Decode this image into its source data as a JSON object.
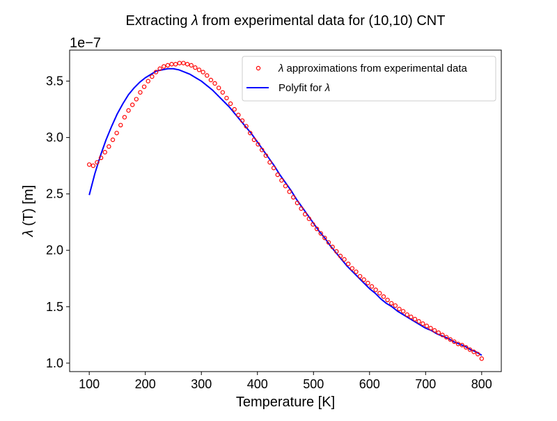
{
  "chart_data": {
    "type": "scatter",
    "title_prefix": "Extracting ",
    "title_symbol": "λ",
    "title_suffix": " from experimental data for (10,10) CNT",
    "xlabel": "Temperature [K]",
    "ylabel_symbol": "λ",
    "ylabel_suffix": " (T) [m]",
    "y_offset_label": "1e−7",
    "xlim": [
      65,
      835
    ],
    "ylim": [
      0.925,
      3.775
    ],
    "x_ticks": [
      100,
      200,
      300,
      400,
      500,
      600,
      700,
      800
    ],
    "x_tick_labels": [
      "100",
      "200",
      "300",
      "400",
      "500",
      "600",
      "700",
      "800"
    ],
    "y_ticks": [
      1.0,
      1.5,
      2.0,
      2.5,
      3.0,
      3.5
    ],
    "y_tick_labels": [
      "1.0",
      "1.5",
      "2.0",
      "2.5",
      "3.0",
      "3.5"
    ],
    "grid": false,
    "legend_position": "top-right",
    "series": [
      {
        "name_symbol": "λ",
        "name_suffix": " approximations from experimental data",
        "kind": "scatter",
        "marker": "open-circle",
        "color": "#ff0000",
        "x": [
          100,
          107,
          114,
          121,
          128,
          135,
          142,
          149,
          156,
          163,
          170,
          177,
          184,
          191,
          198,
          205,
          212,
          219,
          226,
          233,
          240,
          247,
          254,
          261,
          268,
          275,
          282,
          289,
          296,
          303,
          310,
          317,
          324,
          331,
          338,
          345,
          352,
          359,
          366,
          373,
          380,
          387,
          394,
          401,
          408,
          415,
          422,
          429,
          436,
          443,
          450,
          457,
          464,
          471,
          478,
          485,
          492,
          499,
          506,
          513,
          520,
          527,
          534,
          541,
          548,
          555,
          562,
          569,
          576,
          583,
          590,
          597,
          604,
          611,
          618,
          625,
          632,
          639,
          646,
          653,
          660,
          667,
          674,
          681,
          688,
          695,
          702,
          709,
          716,
          723,
          730,
          737,
          744,
          751,
          758,
          765,
          772,
          779,
          786,
          793,
          800
        ],
        "y": [
          2.76,
          2.75,
          2.78,
          2.82,
          2.87,
          2.92,
          2.98,
          3.04,
          3.11,
          3.18,
          3.24,
          3.29,
          3.34,
          3.4,
          3.45,
          3.5,
          3.54,
          3.58,
          3.61,
          3.63,
          3.64,
          3.65,
          3.65,
          3.66,
          3.66,
          3.65,
          3.64,
          3.62,
          3.6,
          3.58,
          3.55,
          3.51,
          3.48,
          3.44,
          3.4,
          3.35,
          3.3,
          3.25,
          3.2,
          3.15,
          3.1,
          3.04,
          2.98,
          2.94,
          2.89,
          2.84,
          2.78,
          2.73,
          2.67,
          2.62,
          2.57,
          2.52,
          2.47,
          2.42,
          2.37,
          2.32,
          2.28,
          2.23,
          2.19,
          2.15,
          2.11,
          2.07,
          2.03,
          1.99,
          1.95,
          1.92,
          1.88,
          1.84,
          1.81,
          1.77,
          1.74,
          1.71,
          1.68,
          1.65,
          1.62,
          1.59,
          1.56,
          1.53,
          1.51,
          1.48,
          1.46,
          1.43,
          1.41,
          1.39,
          1.37,
          1.35,
          1.33,
          1.31,
          1.29,
          1.27,
          1.25,
          1.23,
          1.21,
          1.19,
          1.17,
          1.16,
          1.14,
          1.12,
          1.1,
          1.08,
          1.04
        ]
      },
      {
        "name_prefix": "Polyfit for ",
        "name_symbol": "λ",
        "kind": "line",
        "color": "#0000ff",
        "x": [
          100,
          110,
          120,
          130,
          140,
          150,
          160,
          170,
          180,
          190,
          200,
          210,
          220,
          230,
          240,
          250,
          260,
          270,
          280,
          290,
          300,
          310,
          320,
          330,
          340,
          350,
          360,
          370,
          380,
          390,
          400,
          410,
          420,
          430,
          440,
          450,
          460,
          470,
          480,
          490,
          500,
          510,
          520,
          530,
          540,
          550,
          560,
          570,
          580,
          590,
          600,
          610,
          620,
          630,
          640,
          650,
          660,
          670,
          680,
          690,
          700,
          710,
          720,
          730,
          740,
          750,
          760,
          770,
          780,
          790,
          800
        ],
        "y": [
          2.49,
          2.68,
          2.84,
          2.98,
          3.1,
          3.21,
          3.3,
          3.38,
          3.44,
          3.49,
          3.53,
          3.56,
          3.59,
          3.6,
          3.61,
          3.61,
          3.6,
          3.58,
          3.56,
          3.53,
          3.5,
          3.46,
          3.42,
          3.37,
          3.32,
          3.27,
          3.21,
          3.15,
          3.09,
          3.03,
          2.96,
          2.89,
          2.82,
          2.75,
          2.67,
          2.6,
          2.53,
          2.45,
          2.38,
          2.31,
          2.24,
          2.17,
          2.11,
          2.04,
          1.98,
          1.92,
          1.86,
          1.81,
          1.76,
          1.71,
          1.66,
          1.62,
          1.57,
          1.53,
          1.5,
          1.46,
          1.43,
          1.4,
          1.37,
          1.34,
          1.31,
          1.29,
          1.26,
          1.24,
          1.22,
          1.19,
          1.17,
          1.15,
          1.12,
          1.1,
          1.07
        ]
      }
    ]
  }
}
